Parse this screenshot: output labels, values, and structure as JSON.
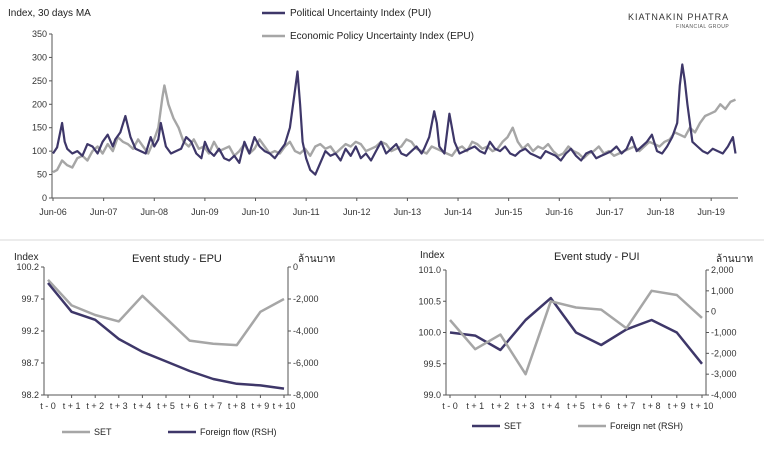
{
  "brand": {
    "name": "KIATNAKIN PHATRA",
    "sub": "FINANCIAL GROUP"
  },
  "colors": {
    "pui": "#3e3769",
    "epu": "#a6a6a6",
    "axis": "#555555"
  },
  "chart_data": [
    {
      "id": "main",
      "type": "line",
      "ylabel": "Index, 30 days MA",
      "ylim": [
        0,
        350
      ],
      "yticks": [
        0,
        50,
        100,
        150,
        200,
        250,
        300,
        350
      ],
      "xlim": [
        2006.4,
        2019.95
      ],
      "xticks": [
        {
          "label": "Jun-06",
          "x": 2006.42
        },
        {
          "label": "Jun-07",
          "x": 2007.42
        },
        {
          "label": "Jun-08",
          "x": 2008.42
        },
        {
          "label": "Jun-09",
          "x": 2009.42
        },
        {
          "label": "Jun-10",
          "x": 2010.42
        },
        {
          "label": "Jun-11",
          "x": 2011.42
        },
        {
          "label": "Jun-12",
          "x": 2012.42
        },
        {
          "label": "Jun-13",
          "x": 2013.42
        },
        {
          "label": "Jun-14",
          "x": 2014.42
        },
        {
          "label": "Jun-15",
          "x": 2015.42
        },
        {
          "label": "Jun-16",
          "x": 2016.42
        },
        {
          "label": "Jun-17",
          "x": 2017.42
        },
        {
          "label": "Jun-18",
          "x": 2018.42
        },
        {
          "label": "Jun-19",
          "x": 2019.42
        }
      ],
      "legend_position": "top-center",
      "series": [
        {
          "name": "Political Uncertainty Index (PUI)",
          "x": [
            2006.42,
            2006.5,
            2006.6,
            2006.65,
            2006.7,
            2006.8,
            2006.9,
            2007.0,
            2007.1,
            2007.2,
            2007.3,
            2007.4,
            2007.5,
            2007.6,
            2007.65,
            2007.75,
            2007.85,
            2007.95,
            2008.05,
            2008.15,
            2008.25,
            2008.35,
            2008.42,
            2008.5,
            2008.55,
            2008.65,
            2008.75,
            2008.85,
            2008.95,
            2009.05,
            2009.15,
            2009.25,
            2009.35,
            2009.42,
            2009.5,
            2009.6,
            2009.7,
            2009.8,
            2009.9,
            2010.0,
            2010.1,
            2010.2,
            2010.3,
            2010.4,
            2010.5,
            2010.6,
            2010.7,
            2010.8,
            2010.9,
            2011.0,
            2011.1,
            2011.2,
            2011.25,
            2011.3,
            2011.35,
            2011.42,
            2011.5,
            2011.6,
            2011.7,
            2011.8,
            2011.9,
            2012.0,
            2012.1,
            2012.2,
            2012.3,
            2012.4,
            2012.5,
            2012.6,
            2012.7,
            2012.8,
            2012.9,
            2013.0,
            2013.1,
            2013.2,
            2013.3,
            2013.4,
            2013.5,
            2013.6,
            2013.7,
            2013.75,
            2013.85,
            2013.95,
            2014.0,
            2014.05,
            2014.15,
            2014.25,
            2014.35,
            2014.45,
            2014.55,
            2014.65,
            2014.75,
            2014.85,
            2014.95,
            2015.05,
            2015.15,
            2015.25,
            2015.35,
            2015.45,
            2015.55,
            2015.65,
            2015.75,
            2015.85,
            2015.95,
            2016.05,
            2016.15,
            2016.25,
            2016.35,
            2016.45,
            2016.55,
            2016.65,
            2016.75,
            2016.85,
            2016.95,
            2017.05,
            2017.15,
            2017.25,
            2017.35,
            2017.45,
            2017.55,
            2017.65,
            2017.75,
            2017.85,
            2017.95,
            2018.05,
            2018.15,
            2018.25,
            2018.35,
            2018.45,
            2018.55,
            2018.65,
            2018.75,
            2018.8,
            2018.85,
            2018.9,
            2018.95,
            2019.05,
            2019.15,
            2019.25,
            2019.35,
            2019.45,
            2019.55,
            2019.65,
            2019.75,
            2019.85,
            2019.9
          ],
          "y": [
            95,
            108,
            160,
            120,
            105,
            95,
            100,
            90,
            115,
            110,
            95,
            120,
            135,
            110,
            125,
            140,
            175,
            130,
            105,
            100,
            95,
            130,
            110,
            125,
            160,
            110,
            95,
            100,
            105,
            130,
            120,
            95,
            85,
            120,
            100,
            90,
            105,
            85,
            80,
            90,
            75,
            120,
            95,
            130,
            110,
            100,
            95,
            85,
            100,
            115,
            150,
            230,
            270,
            200,
            120,
            85,
            60,
            50,
            75,
            100,
            90,
            95,
            80,
            105,
            90,
            110,
            85,
            95,
            80,
            100,
            120,
            95,
            105,
            115,
            95,
            90,
            100,
            110,
            95,
            105,
            130,
            185,
            160,
            110,
            95,
            180,
            120,
            95,
            100,
            105,
            110,
            100,
            95,
            120,
            105,
            100,
            110,
            95,
            90,
            100,
            105,
            95,
            90,
            85,
            100,
            95,
            90,
            80,
            95,
            105,
            90,
            80,
            95,
            100,
            85,
            90,
            95,
            100,
            110,
            95,
            105,
            130,
            100,
            110,
            120,
            135,
            100,
            95,
            110,
            130,
            160,
            240,
            285,
            250,
            200,
            120,
            110,
            100,
            95,
            105,
            100,
            95,
            110,
            130,
            95
          ],
          "color": "#3e3769"
        },
        {
          "name": "Economic Policy Uncertainty Index (EPU)",
          "x": [
            2006.42,
            2006.5,
            2006.6,
            2006.7,
            2006.8,
            2006.9,
            2007.0,
            2007.1,
            2007.2,
            2007.3,
            2007.4,
            2007.5,
            2007.6,
            2007.7,
            2007.8,
            2007.9,
            2008.0,
            2008.1,
            2008.2,
            2008.3,
            2008.4,
            2008.5,
            2008.58,
            2008.62,
            2008.7,
            2008.8,
            2008.9,
            2009.0,
            2009.1,
            2009.2,
            2009.3,
            2009.4,
            2009.5,
            2009.6,
            2009.7,
            2009.8,
            2009.9,
            2010.0,
            2010.1,
            2010.2,
            2010.3,
            2010.4,
            2010.5,
            2010.6,
            2010.7,
            2010.8,
            2010.9,
            2011.0,
            2011.1,
            2011.2,
            2011.3,
            2011.4,
            2011.5,
            2011.6,
            2011.7,
            2011.8,
            2011.9,
            2012.0,
            2012.1,
            2012.2,
            2012.3,
            2012.4,
            2012.5,
            2012.6,
            2012.7,
            2012.8,
            2012.9,
            2013.0,
            2013.1,
            2013.2,
            2013.3,
            2013.4,
            2013.5,
            2013.6,
            2013.7,
            2013.8,
            2013.9,
            2014.0,
            2014.1,
            2014.2,
            2014.3,
            2014.4,
            2014.5,
            2014.6,
            2014.7,
            2014.8,
            2014.9,
            2015.0,
            2015.1,
            2015.2,
            2015.3,
            2015.4,
            2015.5,
            2015.6,
            2015.7,
            2015.8,
            2015.9,
            2016.0,
            2016.1,
            2016.2,
            2016.3,
            2016.4,
            2016.5,
            2016.6,
            2016.7,
            2016.8,
            2016.9,
            2017.0,
            2017.1,
            2017.2,
            2017.3,
            2017.4,
            2017.5,
            2017.6,
            2017.7,
            2017.8,
            2017.9,
            2018.0,
            2018.1,
            2018.2,
            2018.3,
            2018.4,
            2018.5,
            2018.6,
            2018.7,
            2018.8,
            2018.9,
            2019.0,
            2019.1,
            2019.2,
            2019.3,
            2019.4,
            2019.5,
            2019.6,
            2019.7,
            2019.8,
            2019.9
          ],
          "y": [
            55,
            60,
            80,
            70,
            65,
            85,
            90,
            80,
            100,
            110,
            95,
            115,
            100,
            130,
            120,
            115,
            105,
            125,
            110,
            95,
            120,
            150,
            215,
            240,
            200,
            170,
            150,
            120,
            110,
            125,
            105,
            110,
            95,
            120,
            100,
            105,
            110,
            90,
            100,
            115,
            95,
            105,
            125,
            110,
            95,
            100,
            95,
            110,
            120,
            100,
            95,
            105,
            90,
            110,
            115,
            105,
            110,
            95,
            105,
            115,
            110,
            120,
            115,
            100,
            105,
            110,
            120,
            115,
            100,
            105,
            110,
            125,
            120,
            105,
            100,
            95,
            110,
            105,
            100,
            95,
            90,
            105,
            110,
            100,
            120,
            115,
            105,
            110,
            100,
            105,
            120,
            130,
            150,
            120,
            105,
            115,
            100,
            110,
            105,
            115,
            100,
            90,
            95,
            110,
            100,
            95,
            85,
            95,
            100,
            110,
            95,
            100,
            90,
            95,
            100,
            105,
            110,
            100,
            110,
            120,
            115,
            110,
            120,
            125,
            140,
            135,
            130,
            150,
            140,
            160,
            175,
            180,
            185,
            200,
            190,
            205,
            210
          ],
          "color": "#a6a6a6"
        }
      ]
    },
    {
      "id": "epu-event",
      "type": "line",
      "title": "Event study - EPU",
      "ylabel": "Index",
      "y2label": "ล้านบาท",
      "categories": [
        "t - 0",
        "t + 1",
        "t + 2",
        "t + 3",
        "t + 4",
        "t + 5",
        "t + 6",
        "t + 7",
        "t + 8",
        "t + 9",
        "t + 10"
      ],
      "ylim": [
        98.2,
        100.2
      ],
      "yticks": [
        100.2,
        99.7,
        99.2,
        98.7,
        98.2
      ],
      "y2lim": [
        -8000,
        0
      ],
      "y2ticks": [
        0,
        -2000,
        -4000,
        -6000,
        -8000
      ],
      "y2ticklabels": [
        "0",
        "-2,000",
        "-4,000",
        "-6,000",
        "-8,000"
      ],
      "series": [
        {
          "name": "SET",
          "axis": "left",
          "color": "#a6a6a6",
          "values": [
            100.0,
            99.6,
            99.45,
            99.35,
            99.75,
            99.4,
            99.05,
            99.0,
            98.98,
            99.5,
            99.7
          ]
        },
        {
          "name": "Foreign flow (RSH)",
          "axis": "right",
          "color": "#3e3769",
          "values": [
            -1000,
            -2800,
            -3300,
            -4500,
            -5300,
            -5900,
            -6500,
            -7000,
            -7300,
            -7400,
            -7600
          ]
        }
      ]
    },
    {
      "id": "pui-event",
      "type": "line",
      "title": "Event study - PUI",
      "ylabel": "Index",
      "y2label": "ล้านบาท",
      "categories": [
        "t - 0",
        "t + 1",
        "t + 2",
        "t + 3",
        "t + 4",
        "t + 5",
        "t + 6",
        "t + 7",
        "t + 8",
        "t + 9",
        "t + 10"
      ],
      "ylim": [
        99.0,
        101.0
      ],
      "yticks": [
        101.0,
        100.5,
        100.0,
        99.5,
        99.0
      ],
      "y2lim": [
        -4000,
        2000
      ],
      "y2ticks": [
        2000,
        1000,
        0,
        -1000,
        -2000,
        -3000,
        -4000
      ],
      "y2ticklabels": [
        "2,000",
        "1,000",
        "0",
        "-1,000",
        "-2,000",
        "-3,000",
        "-4,000"
      ],
      "series": [
        {
          "name": "SET",
          "axis": "left",
          "color": "#3e3769",
          "values": [
            100.0,
            99.95,
            99.72,
            100.2,
            100.55,
            100.0,
            99.8,
            100.05,
            100.2,
            100.0,
            99.5
          ]
        },
        {
          "name": "Foreign net (RSH)",
          "axis": "right",
          "color": "#a6a6a6",
          "values": [
            -400,
            -1800,
            -1100,
            -3000,
            500,
            200,
            100,
            -800,
            1000,
            800,
            -300
          ]
        }
      ]
    }
  ]
}
